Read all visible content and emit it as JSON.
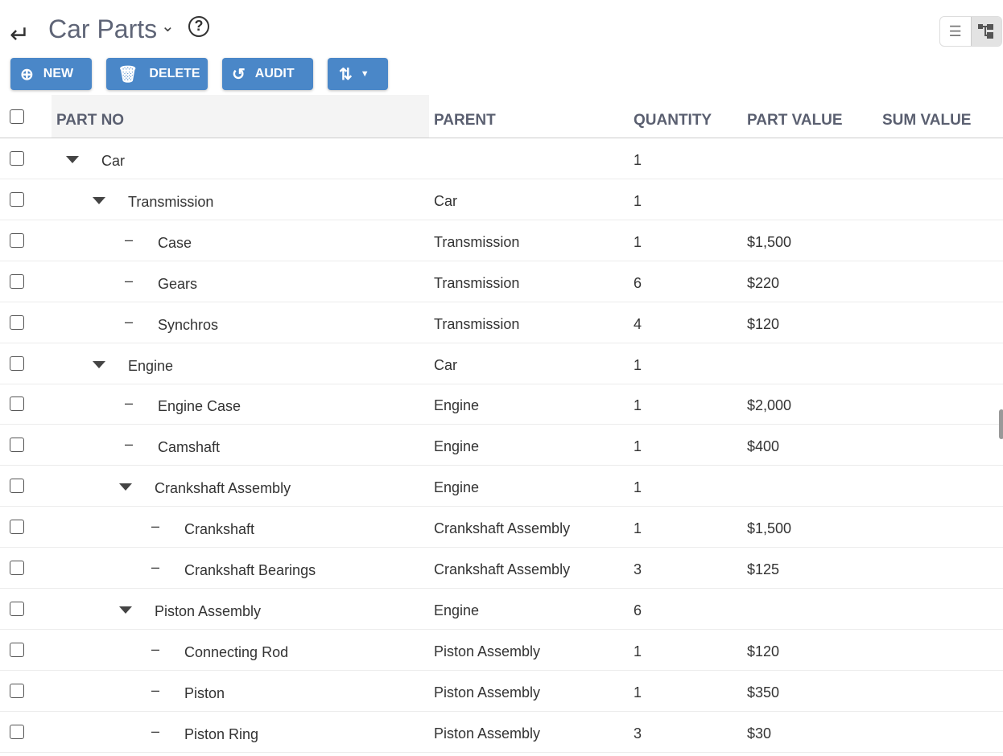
{
  "header": {
    "title": "Car Parts",
    "back_icon": "return-arrow-icon",
    "help_icon": "help-circle-icon"
  },
  "view_toggle": {
    "options": [
      "list-view",
      "tree-view"
    ],
    "selected": "tree-view"
  },
  "toolbar": {
    "new_label": "NEW",
    "delete_label": "DELETE",
    "audit_label": "AUDIT",
    "button_color": "#4a87c8"
  },
  "table": {
    "columns": [
      "PART NO",
      "PARENT",
      "QUANTITY",
      "PART VALUE",
      "SUM VALUE"
    ],
    "rows": [
      {
        "level": 0,
        "type": "group",
        "part": "Car",
        "parent": "",
        "qty": "1",
        "value": "",
        "sum": ""
      },
      {
        "level": 1,
        "type": "group",
        "part": "Transmission",
        "parent": "Car",
        "qty": "1",
        "value": "",
        "sum": ""
      },
      {
        "level": 2,
        "type": "leaf",
        "part": "Case",
        "parent": "Transmission",
        "qty": "1",
        "value": "$1,500",
        "sum": ""
      },
      {
        "level": 2,
        "type": "leaf",
        "part": "Gears",
        "parent": "Transmission",
        "qty": "6",
        "value": "$220",
        "sum": ""
      },
      {
        "level": 2,
        "type": "leaf",
        "part": "Synchros",
        "parent": "Transmission",
        "qty": "4",
        "value": "$120",
        "sum": ""
      },
      {
        "level": 1,
        "type": "group",
        "part": "Engine",
        "parent": "Car",
        "qty": "1",
        "value": "",
        "sum": ""
      },
      {
        "level": 2,
        "type": "leaf",
        "part": "Engine Case",
        "parent": "Engine",
        "qty": "1",
        "value": "$2,000",
        "sum": ""
      },
      {
        "level": 2,
        "type": "leaf",
        "part": "Camshaft",
        "parent": "Engine",
        "qty": "1",
        "value": "$400",
        "sum": ""
      },
      {
        "level": 2,
        "type": "group",
        "part": "Crankshaft Assembly",
        "parent": "Engine",
        "qty": "1",
        "value": "",
        "sum": ""
      },
      {
        "level": 3,
        "type": "leaf",
        "part": "Crankshaft",
        "parent": "Crankshaft Assembly",
        "qty": "1",
        "value": "$1,500",
        "sum": ""
      },
      {
        "level": 3,
        "type": "leaf",
        "part": "Crankshaft Bearings",
        "parent": "Crankshaft Assembly",
        "qty": "3",
        "value": "$125",
        "sum": ""
      },
      {
        "level": 2,
        "type": "group",
        "part": "Piston Assembly",
        "parent": "Engine",
        "qty": "6",
        "value": "",
        "sum": ""
      },
      {
        "level": 3,
        "type": "leaf",
        "part": "Connecting Rod",
        "parent": "Piston Assembly",
        "qty": "1",
        "value": "$120",
        "sum": ""
      },
      {
        "level": 3,
        "type": "leaf",
        "part": "Piston",
        "parent": "Piston Assembly",
        "qty": "1",
        "value": "$350",
        "sum": ""
      },
      {
        "level": 3,
        "type": "leaf",
        "part": "Piston Ring",
        "parent": "Piston Assembly",
        "qty": "3",
        "value": "$30",
        "sum": ""
      }
    ]
  }
}
